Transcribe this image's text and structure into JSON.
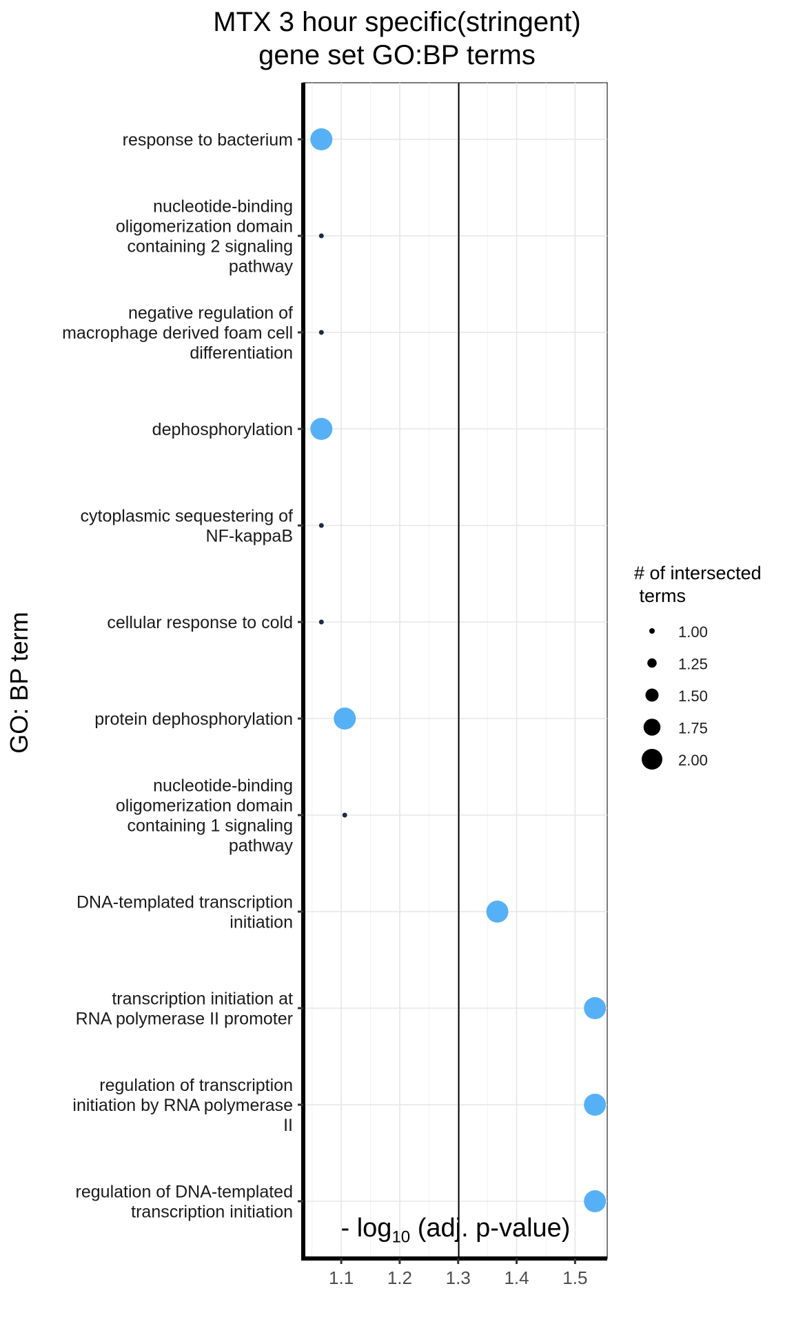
{
  "chart_data": {
    "type": "scatter",
    "title_lines": [
      "MTX 3 hour specific(stringent)",
      "gene set GO:BP terms"
    ],
    "xlabel": {
      "prefix": "- log",
      "subscript": "10",
      "suffix": " (adj. p-value)"
    },
    "ylabel": "GO: BP term",
    "xlim": [
      1.035,
      1.555
    ],
    "xticks": [
      1.1,
      1.2,
      1.3,
      1.4,
      1.5
    ],
    "xtick_labels": [
      "1.1",
      "1.2",
      "1.3",
      "1.4",
      "1.5"
    ],
    "vline": 1.301,
    "grid": true,
    "legend": {
      "title_lines": [
        "# of intersected",
        " terms"
      ],
      "placement": "right",
      "sizes": [
        1.0,
        1.25,
        1.5,
        1.75,
        2.0
      ],
      "labels": [
        "1.00",
        "1.25",
        "1.50",
        "1.75",
        "2.00"
      ]
    },
    "colors": {
      "two_terms": "#56b0f6",
      "one_term": "#1c2b44"
    },
    "points": [
      {
        "term_lines": [
          "response to bacterium"
        ],
        "x": 1.066,
        "count": 2
      },
      {
        "term_lines": [
          "nucleotide-binding",
          "oligomerization domain",
          "containing 2 signaling",
          "pathway"
        ],
        "x": 1.066,
        "count": 1
      },
      {
        "term_lines": [
          "negative regulation of",
          "macrophage derived foam cell",
          "differentiation"
        ],
        "x": 1.066,
        "count": 1
      },
      {
        "term_lines": [
          "dephosphorylation"
        ],
        "x": 1.066,
        "count": 2
      },
      {
        "term_lines": [
          "cytoplasmic sequestering of",
          "NF-kappaB"
        ],
        "x": 1.066,
        "count": 1
      },
      {
        "term_lines": [
          "cellular response to cold"
        ],
        "x": 1.066,
        "count": 1
      },
      {
        "term_lines": [
          "protein dephosphorylation"
        ],
        "x": 1.106,
        "count": 2
      },
      {
        "term_lines": [
          "nucleotide-binding",
          "oligomerization domain",
          "containing 1 signaling",
          "pathway"
        ],
        "x": 1.106,
        "count": 1
      },
      {
        "term_lines": [
          "DNA-templated transcription",
          "initiation"
        ],
        "x": 1.367,
        "count": 2
      },
      {
        "term_lines": [
          "transcription initiation at",
          "RNA polymerase II promoter"
        ],
        "x": 1.534,
        "count": 2
      },
      {
        "term_lines": [
          "regulation of transcription",
          "initiation by RNA polymerase",
          "II"
        ],
        "x": 1.534,
        "count": 2
      },
      {
        "term_lines": [
          "regulation of DNA-templated",
          "transcription initiation"
        ],
        "x": 1.534,
        "count": 2
      }
    ]
  }
}
